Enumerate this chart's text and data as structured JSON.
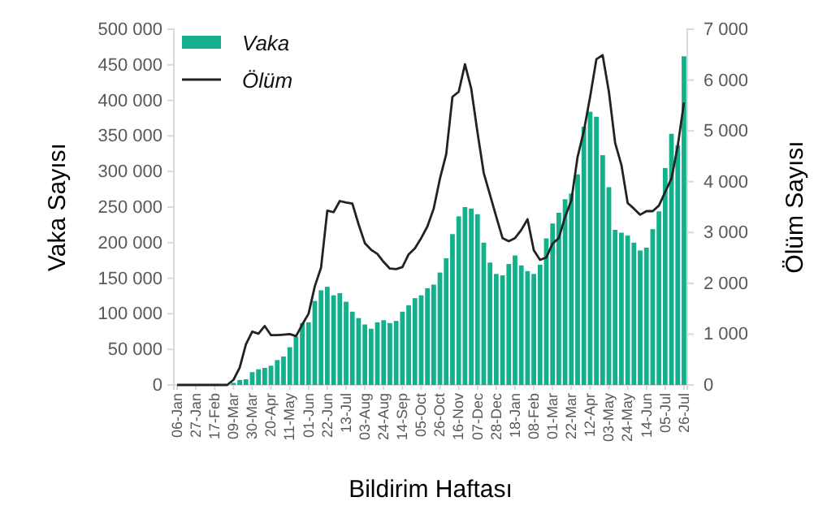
{
  "chart_data": {
    "type": "bar",
    "xlabel": "Bildirim Haftası",
    "ylabel": "Vaka Sayısı",
    "y2label": "Ölüm Sayısı",
    "categories": [
      "06-Jan",
      null,
      null,
      "27-Jan",
      null,
      null,
      "17-Feb",
      null,
      null,
      "09-Mar",
      null,
      null,
      "30-Mar",
      null,
      null,
      "20-Apr",
      null,
      null,
      "11-May",
      null,
      null,
      "01-Jun",
      null,
      null,
      "22-Jun",
      null,
      null,
      "13-Jul",
      null,
      null,
      "03-Aug",
      null,
      null,
      "24-Aug",
      null,
      null,
      "14-Sep",
      null,
      null,
      "05-Oct",
      null,
      null,
      "26-Oct",
      null,
      null,
      "16-Nov",
      null,
      null,
      "07-Dec",
      null,
      null,
      "28-Dec",
      null,
      null,
      "18-Jan",
      null,
      null,
      "08-Feb",
      null,
      null,
      "01-Mar",
      null,
      null,
      "22-Mar",
      null,
      null,
      "12-Apr",
      null,
      null,
      "03-May",
      null,
      null,
      "24-May",
      null,
      null,
      "14-Jun",
      null,
      null,
      "05-Jul",
      null,
      null,
      "26-Jul"
    ],
    "series": [
      {
        "name": "Vaka",
        "color": "#13b08c",
        "values": [
          null,
          null,
          null,
          null,
          null,
          null,
          null,
          null,
          null,
          3000,
          7000,
          8000,
          18000,
          22000,
          24000,
          27000,
          35000,
          40000,
          53000,
          68000,
          87000,
          88000,
          118000,
          133000,
          138000,
          126000,
          129000,
          117000,
          103000,
          94000,
          85000,
          79000,
          88000,
          91000,
          87000,
          90000,
          103000,
          112000,
          122000,
          126000,
          136000,
          141000,
          158000,
          178000,
          212000,
          237000,
          250000,
          248000,
          240000,
          200000,
          172000,
          156000,
          154000,
          170000,
          182000,
          168000,
          160000,
          156000,
          169000,
          206000,
          227000,
          242000,
          261000,
          269000,
          296000,
          363000,
          384000,
          377000,
          323000,
          278000,
          218000,
          214000,
          210000,
          200000,
          189000,
          193000,
          219000,
          244000,
          305000,
          353000,
          337000,
          462000
        ]
      },
      {
        "name": "Ölüm",
        "type": "line",
        "axis": "y2",
        "color": "#222222",
        "values": [
          0,
          0,
          0,
          0,
          0,
          0,
          0,
          0,
          0,
          100,
          340,
          800,
          1050,
          1010,
          1160,
          980,
          980,
          990,
          1000,
          960,
          1190,
          1400,
          1940,
          2310,
          3430,
          3400,
          3620,
          3590,
          3570,
          3160,
          2790,
          2660,
          2580,
          2420,
          2290,
          2280,
          2320,
          2570,
          2690,
          2890,
          3120,
          3470,
          4060,
          4540,
          5670,
          5770,
          6310,
          5830,
          4970,
          4170,
          3740,
          3310,
          2890,
          2830,
          2890,
          3050,
          3260,
          2650,
          2460,
          2510,
          2780,
          2890,
          3310,
          3630,
          4490,
          5000,
          5670,
          6410,
          6490,
          5770,
          4760,
          4330,
          3580,
          3470,
          3350,
          3420,
          3420,
          3530,
          3800,
          4060,
          4700,
          5560
        ]
      }
    ],
    "ylim": [
      0,
      500000
    ],
    "yticks": [
      0,
      {
        "value": 50000,
        "label": "50 000"
      },
      {
        "value": 100000,
        "label": "100 000"
      },
      {
        "value": 150000,
        "label": "150 000"
      },
      {
        "value": 200000,
        "label": "200 000"
      },
      {
        "value": 250000,
        "label": "250 000"
      },
      {
        "value": 300000,
        "label": "300 000"
      },
      {
        "value": 350000,
        "label": "350 000"
      },
      {
        "value": 400000,
        "label": "400 000"
      },
      {
        "value": 450000,
        "label": "450 000"
      },
      {
        "value": 500000,
        "label": "500 000"
      }
    ],
    "y2lim": [
      0,
      7000
    ],
    "y2ticks": [
      0,
      {
        "value": 1000,
        "label": "1 000"
      },
      {
        "value": 2000,
        "label": "2 000"
      },
      {
        "value": 3000,
        "label": "3 000"
      },
      {
        "value": 4000,
        "label": "4 000"
      },
      {
        "value": 5000,
        "label": "5 000"
      },
      {
        "value": 6000,
        "label": "6 000"
      },
      {
        "value": 7000,
        "label": "7 000"
      }
    ],
    "grid": false,
    "legend": "top left",
    "line_style": "solid",
    "marker": "none"
  }
}
